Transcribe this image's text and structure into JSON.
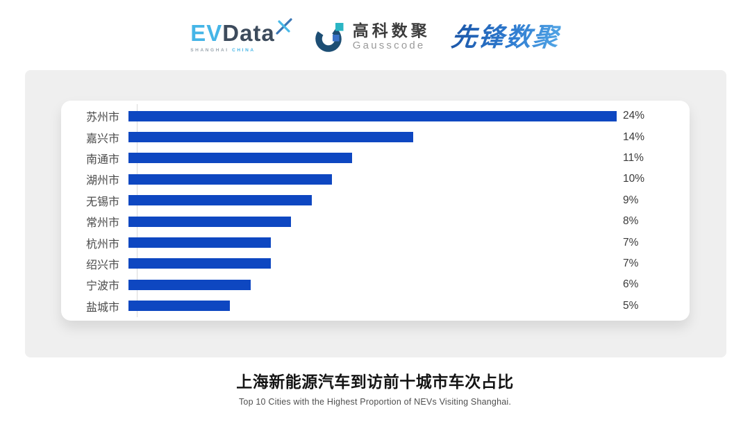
{
  "header": {
    "evdata_logo": {
      "ev": "EV",
      "data": "Data",
      "sub_left": "SHANGHAI",
      "sub_right": "CHINA"
    },
    "gausscode_logo": {
      "cn": "高科数聚",
      "en": "Gausscode"
    },
    "xianfeng_logo": {
      "text": "先锋数聚"
    }
  },
  "chart_data": {
    "type": "bar",
    "orientation": "horizontal",
    "categories": [
      "苏州市",
      "嘉兴市",
      "南通市",
      "湖州市",
      "无锡市",
      "常州市",
      "杭州市",
      "绍兴市",
      "宁波市",
      "盐城市"
    ],
    "values": [
      24,
      14,
      11,
      10,
      9,
      8,
      7,
      7,
      6,
      5
    ],
    "value_labels": [
      "24%",
      "14%",
      "11%",
      "10%",
      "9%",
      "8%",
      "7%",
      "7%",
      "6%",
      "5%"
    ],
    "xlim": [
      0,
      24
    ],
    "grid": false,
    "legend": "none",
    "bar_color": "#0e47c1",
    "title": "上海新能源汽车到访前十城市车次占比",
    "subtitle": "Top 10 Cities with the Highest Proportion of NEVs Visiting Shanghai."
  },
  "footer": {
    "title": "上海新能源汽车到访前十城市车次占比",
    "subtitle": "Top 10 Cities with the Highest Proportion of NEVs Visiting Shanghai."
  },
  "colors": {
    "bar": "#0e47c1",
    "panel_bg": "#efefef",
    "card_bg": "#ffffff",
    "axis_line": "#d9d9d9",
    "evdata_cyan": "#45b5e7",
    "evdata_slate": "#3d4b5c",
    "gausscode_navy": "#1d4e74",
    "gausscode_teal": "#2ab5c4",
    "gausscode_blue": "#3b72c8",
    "xianfeng_blue": "#2e7bd0"
  }
}
